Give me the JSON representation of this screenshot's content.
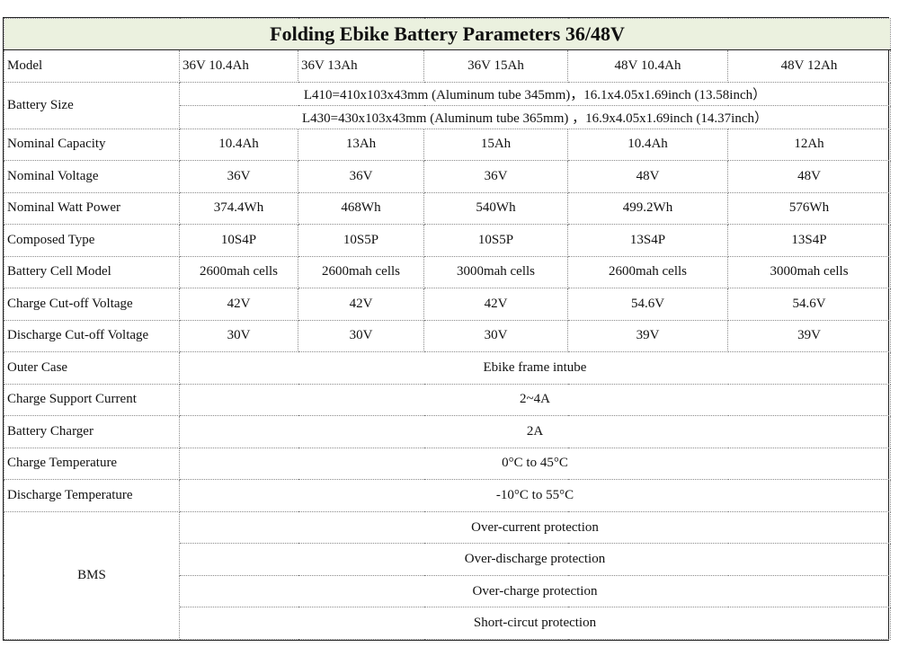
{
  "title": "Folding Ebike Battery Parameters 36/48V",
  "rows": {
    "model": {
      "label": "Model",
      "values": [
        "36V  10.4Ah",
        "36V 13Ah",
        "36V 15Ah",
        "48V 10.4Ah",
        "48V 12Ah"
      ]
    },
    "battery_size": {
      "label": "Battery Size",
      "line1": "L410=410x103x43mm (Aluminum tube 345mm)，16.1x4.05x1.69inch (13.58inch）",
      "line2": "L430=430x103x43mm (Aluminum tube 365mm)  ，16.9x4.05x1.69inch (14.37inch）"
    },
    "nominal_capacity": {
      "label": "Nominal Capacity",
      "values": [
        "10.4Ah",
        "13Ah",
        "15Ah",
        "10.4Ah",
        "12Ah"
      ]
    },
    "nominal_voltage": {
      "label": "Nominal Voltage",
      "values": [
        "36V",
        "36V",
        "36V",
        "48V",
        "48V"
      ]
    },
    "nominal_watt_power": {
      "label": "Nominal  Watt Power",
      "values": [
        "374.4Wh",
        "468Wh",
        "540Wh",
        "499.2Wh",
        "576Wh"
      ]
    },
    "composed_type": {
      "label": "Composed Type",
      "values": [
        "10S4P",
        "10S5P",
        "10S5P",
        "13S4P",
        "13S4P"
      ]
    },
    "battery_cell_model": {
      "label": "Battery Cell  Model",
      "values": [
        "2600mah cells",
        "2600mah cells",
        "3000mah cells",
        "2600mah cells",
        "3000mah cells"
      ]
    },
    "charge_cutoff_voltage": {
      "label": "Charge Cut-off  Voltage",
      "values": [
        "42V",
        "42V",
        "42V",
        "54.6V",
        "54.6V"
      ]
    },
    "discharge_cutoff_voltage": {
      "label": "Discharge Cut-off  Voltage",
      "values": [
        "30V",
        "30V",
        "30V",
        "39V",
        "39V"
      ]
    },
    "outer_case": {
      "label": "Outer Case",
      "value": "Ebike frame intube"
    },
    "charge_support_current": {
      "label": "Charge Support  Current",
      "value": "2~4A"
    },
    "battery_charger": {
      "label": "Battery Charger",
      "value": "2A"
    },
    "charge_temperature": {
      "label": "Charge Temperature",
      "value": "0°C to 45°C"
    },
    "discharge_temperature": {
      "label": "Discharge  Temperature",
      "value": "-10°C to 55°C"
    },
    "bms": {
      "label": "BMS",
      "values": [
        "Over-current protection",
        "Over-discharge protection",
        "Over-charge protection",
        "Short-circut protection"
      ]
    }
  }
}
